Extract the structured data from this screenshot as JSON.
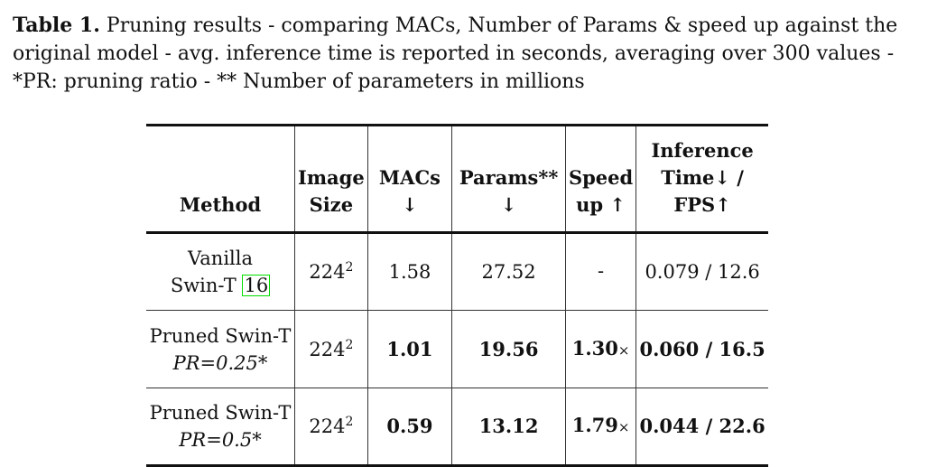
{
  "caption": {
    "label": "Table 1.",
    "text": "Pruning results - comparing MACs, Number of Params & speed up against the original model - avg. inference time is reported in seconds, averaging over 300 values - *PR: pruning ratio - ** Number of parameters in millions"
  },
  "table": {
    "headers": {
      "method": "Method",
      "image_size_line1": "Image",
      "image_size_line2": "Size",
      "macs": "MACs ↓",
      "params": "Params** ↓",
      "speedup_line1": "Speed",
      "speedup_line2": "up ↑",
      "inference_line1": "Inference",
      "inference_line2": "Time↓ / FPS↑"
    },
    "rows": [
      {
        "method_line1": "Vanilla",
        "method_line2": "Swin-T",
        "citation": "16",
        "image_size_base": "224",
        "image_size_exp": "2",
        "macs": "1.58",
        "params": "27.52",
        "speedup": "-",
        "speedup_suffix": "",
        "inference": "0.079 / 12.6"
      },
      {
        "method_line1": "Pruned Swin-T",
        "method_line2": "PR=0.25*",
        "image_size_base": "224",
        "image_size_exp": "2",
        "macs": "1.01",
        "params": "19.56",
        "speedup": "1.30",
        "speedup_suffix": "×",
        "inference": "0.060 / 16.5"
      },
      {
        "method_line1": "Pruned Swin-T",
        "method_line2": "PR=0.5*",
        "image_size_base": "224",
        "image_size_exp": "2",
        "macs": "0.59",
        "params": "13.12",
        "speedup": "1.79",
        "speedup_suffix": "×",
        "inference": "0.044 / 22.6"
      }
    ]
  }
}
